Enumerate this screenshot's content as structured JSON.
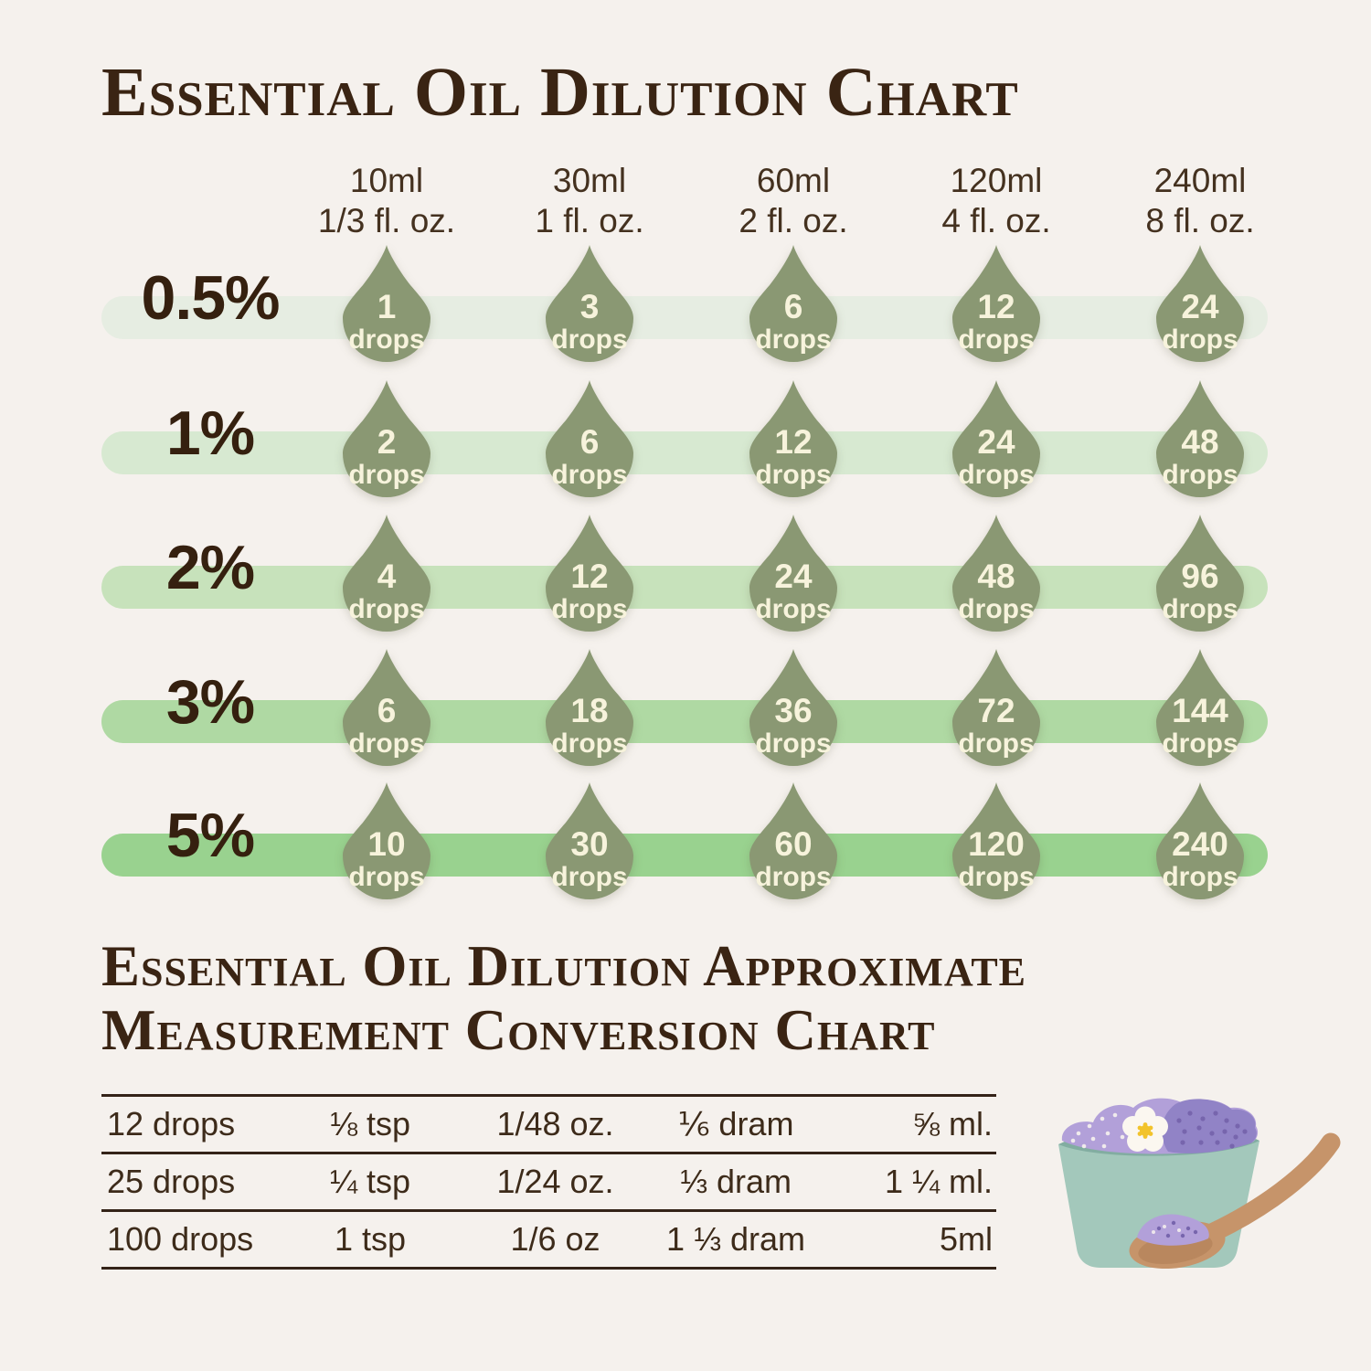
{
  "page": {
    "title": "Essential Oil Dilution Chart"
  },
  "dilution_chart": {
    "unit_label": "drops",
    "columns": [
      {
        "volume": "10ml",
        "ounces": "1/3 fl. oz."
      },
      {
        "volume": "30ml",
        "ounces": "1 fl. oz."
      },
      {
        "volume": "60ml",
        "ounces": "2 fl. oz."
      },
      {
        "volume": "120ml",
        "ounces": "4 fl. oz."
      },
      {
        "volume": "240ml",
        "ounces": "8 fl. oz."
      }
    ],
    "rows": [
      {
        "percent": "0.5%",
        "band_color": "#e6ede2",
        "values": [
          1,
          3,
          6,
          12,
          24
        ]
      },
      {
        "percent": "1%",
        "band_color": "#d7e9d1",
        "values": [
          2,
          6,
          12,
          24,
          48
        ]
      },
      {
        "percent": "2%",
        "band_color": "#c7e2bb",
        "values": [
          4,
          12,
          24,
          48,
          96
        ]
      },
      {
        "percent": "3%",
        "band_color": "#afd9a3",
        "values": [
          6,
          18,
          36,
          72,
          144
        ]
      },
      {
        "percent": "5%",
        "band_color": "#99d28f",
        "values": [
          10,
          30,
          60,
          120,
          240
        ]
      }
    ]
  },
  "conversion_chart": {
    "title_lines": [
      "Essential Oil Dilution Approximate",
      "Measurement Conversion Chart"
    ],
    "rows": [
      [
        "12 drops",
        "⅛ tsp",
        "1/48 oz.",
        "⅙ dram",
        "⅝ ml."
      ],
      [
        "25 drops",
        "¼ tsp",
        "1/24 oz.",
        "⅓ dram",
        "1 ¼ ml."
      ],
      [
        "100 drops",
        "1 tsp",
        "1/6 oz",
        "1 ⅓ dram",
        "5ml"
      ]
    ]
  },
  "illustration": {
    "description": "teal bowl of purple bath salts with white flower and wooden spoon"
  },
  "colors": {
    "background": "#f5f1ed",
    "title_brown": "#3a2413",
    "header_text": "#44311f",
    "row_label": "#35200f",
    "drop_green": "#8a9873",
    "drop_text": "#f7f3dc",
    "table_text": "#3d2b1a",
    "table_line": "#342318",
    "bowl_teal": "#a3c8bb",
    "bowl_inner": "#82ada1",
    "salt_light": "#b2a0d9",
    "salt_dark": "#9183c6",
    "salt_dot_dark": "#7765ad",
    "flower_white": "#fbf7f0",
    "flower_yellow": "#f2c32b",
    "spoon_tan": "#c6946a",
    "spoon_dark": "#a87850"
  },
  "chart_data": [
    {
      "type": "table",
      "title": "Essential Oil Dilution Chart",
      "columns": [
        "10ml (1/3 fl. oz.)",
        "30ml (1 fl. oz.)",
        "60ml (2 fl. oz.)",
        "120ml (4 fl. oz.)",
        "240ml (8 fl. oz.)"
      ],
      "row_labels": [
        "0.5%",
        "1%",
        "2%",
        "3%",
        "5%"
      ],
      "values_unit": "drops",
      "values": [
        [
          1,
          3,
          6,
          12,
          24
        ],
        [
          2,
          6,
          12,
          24,
          48
        ],
        [
          4,
          12,
          24,
          48,
          96
        ],
        [
          6,
          18,
          36,
          72,
          144
        ],
        [
          10,
          30,
          60,
          120,
          240
        ]
      ]
    },
    {
      "type": "table",
      "title": "Essential Oil Dilution Approximate Measurement Conversion Chart",
      "rows": [
        [
          "12 drops",
          "⅛ tsp",
          "1/48 oz.",
          "⅙ dram",
          "⅝ ml."
        ],
        [
          "25 drops",
          "¼ tsp",
          "1/24 oz.",
          "⅓ dram",
          "1 ¼ ml."
        ],
        [
          "100 drops",
          "1 tsp",
          "1/6 oz",
          "1 ⅓ dram",
          "5ml"
        ]
      ]
    }
  ]
}
